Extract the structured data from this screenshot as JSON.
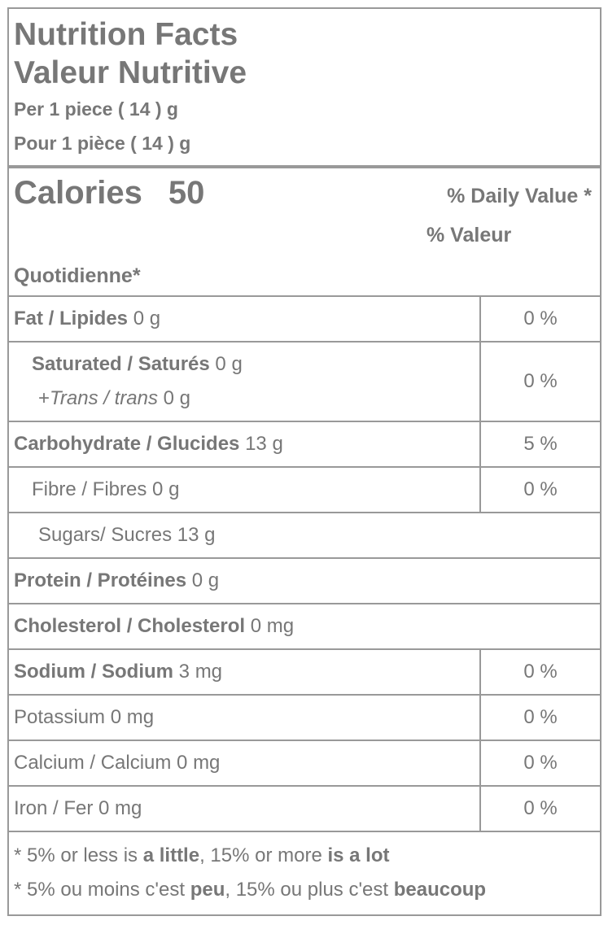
{
  "header": {
    "title_en": "Nutrition Facts",
    "title_fr": "Valeur Nutritive",
    "serving_en": "Per 1 piece ( 14 ) g",
    "serving_fr": "Pour 1 pièce ( 14 ) g"
  },
  "calories": {
    "label": "Calories",
    "value": "50",
    "dv_en": "% Daily Value *",
    "dv_fr1": "% Valeur",
    "dv_fr2": "Quotidienne*"
  },
  "rows": {
    "fat": {
      "label": "Fat / Lipides",
      "amount": "0 g",
      "dv": "0 %"
    },
    "saturated": {
      "label": "Saturated / Saturés",
      "amount": "0 g",
      "trans_prefix": "+",
      "trans_label": "Trans / trans",
      "trans_amount": "0 g",
      "dv": "0 %"
    },
    "carb": {
      "label": "Carbohydrate / Glucides",
      "amount": "13 g",
      "dv": "5 %"
    },
    "fibre": {
      "label": "Fibre / Fibres",
      "amount": "0 g",
      "dv": "0 %"
    },
    "sugars": {
      "label": "Sugars/ Sucres",
      "amount": "13 g"
    },
    "protein": {
      "label": "Protein / Protéines",
      "amount": "0 g"
    },
    "cholesterol": {
      "label": "Cholesterol / Cholesterol",
      "amount": "0 mg"
    },
    "sodium": {
      "label": "Sodium / Sodium",
      "amount": "3 mg",
      "dv": "0 %"
    },
    "potassium": {
      "label": "Potassium",
      "amount": "0 mg",
      "dv": "0 %"
    },
    "calcium": {
      "label": "Calcium / Calcium",
      "amount": "0 mg",
      "dv": "0 %"
    },
    "iron": {
      "label": "Iron / Fer",
      "amount": "0 mg",
      "dv": "0 %"
    }
  },
  "footer": {
    "en": {
      "a": "* 5% or less is ",
      "b": "a little",
      "c": ", 15% or more ",
      "d": "is a lot"
    },
    "fr": {
      "a": "* 5% ou moins c'est ",
      "b": "peu",
      "c": ", 15% ou plus c'est ",
      "d": "beaucoup"
    }
  },
  "colors": {
    "text": "#777777",
    "border": "#999999"
  }
}
